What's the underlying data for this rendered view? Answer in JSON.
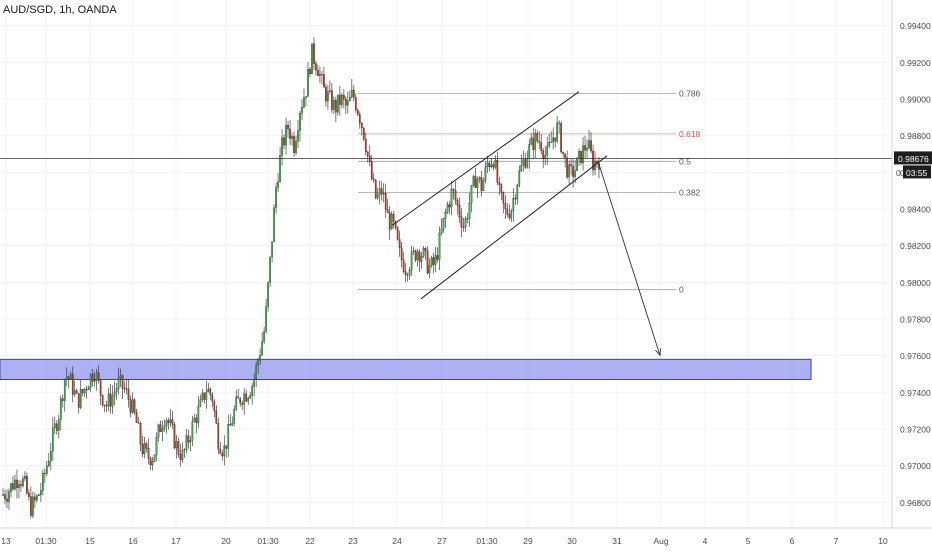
{
  "symbol_title": "AUD/SGD, 1h, OANDA",
  "colors": {
    "up": "#26a69a",
    "down": "#ef5350",
    "fill_up": "#39b54a",
    "fill_down": "#c0392b",
    "wick": "#222222",
    "support_zone": "#9fa3f0",
    "support_zone_border": "#3c3fb4",
    "price_line": "#333333",
    "fib_line": "#a0a0a0",
    "fib_highlight": "#f0a0a0",
    "grid": "#f0f3fa",
    "axis_text": "#4a4a4a"
  },
  "chart_data": {
    "type": "candlestick",
    "title": "AUD/SGD, 1h, OANDA",
    "ylim": [
      0.9666,
      0.9954
    ],
    "y_ticks": [
      "0.99400",
      "0.99200",
      "0.99000",
      "0.98800",
      "0.98600",
      "0.98400",
      "0.98200",
      "0.98000",
      "0.97800",
      "0.97600",
      "0.97400",
      "0.97200",
      "0.97000",
      "0.96800"
    ],
    "x_ticks": [
      "13",
      "01:30",
      "15",
      "16",
      "17",
      "20",
      "01:30",
      "22",
      "23",
      "24",
      "27",
      "01:30",
      "29",
      "30",
      "31",
      "Aug",
      "4",
      "5",
      "6",
      "7",
      "10"
    ],
    "current_price": "0.98676",
    "countdown": "03:55",
    "current_price_partial": "0",
    "candle_path": [
      0.9684,
      0.9685,
      0.969,
      0.9694,
      0.969,
      0.9677,
      0.9681,
      0.9689,
      0.9703,
      0.9718,
      0.973,
      0.975,
      0.9745,
      0.9735,
      0.974,
      0.9747,
      0.9752,
      0.974,
      0.9733,
      0.9738,
      0.9745,
      0.9742,
      0.9735,
      0.9725,
      0.971,
      0.9705,
      0.9705,
      0.972,
      0.9728,
      0.972,
      0.971,
      0.9705,
      0.9715,
      0.9725,
      0.9732,
      0.9742,
      0.9738,
      0.9715,
      0.9708,
      0.972,
      0.9732,
      0.9738,
      0.974,
      0.9745,
      0.976,
      0.9775,
      0.9815,
      0.9855,
      0.9875,
      0.9885,
      0.9875,
      0.9895,
      0.9905,
      0.9925,
      0.9918,
      0.9905,
      0.99,
      0.9895,
      0.99,
      0.9895,
      0.9903,
      0.9893,
      0.988,
      0.986,
      0.9845,
      0.985,
      0.9835,
      0.983,
      0.9815,
      0.9808,
      0.9812,
      0.9818,
      0.9815,
      0.9808,
      0.981,
      0.9825,
      0.984,
      0.985,
      0.984,
      0.983,
      0.9845,
      0.9858,
      0.9852,
      0.9865,
      0.9868,
      0.9848,
      0.9838,
      0.984,
      0.9855,
      0.9865,
      0.9872,
      0.9878,
      0.9877,
      0.9868,
      0.9878,
      0.9885,
      0.9868,
      0.9858,
      0.9862,
      0.987,
      0.9876,
      0.9865,
      0.9867
    ],
    "support_zone": {
      "from": 0.9747,
      "to": 0.9758
    },
    "fibonacci": {
      "levels": [
        {
          "label": "0.786",
          "price": 0.9903
        },
        {
          "label": "0.618",
          "price": 0.9881
        },
        {
          "label": "0.5",
          "price": 0.9866
        },
        {
          "label": "0.382",
          "price": 0.9849
        },
        {
          "label": "0",
          "price": 0.9796
        }
      ],
      "highlight_label": "0.618"
    },
    "channel": {
      "upper": {
        "from": {
          "x": 23.4,
          "price": 0.9831
        },
        "to": {
          "x": 30.2,
          "price": 0.9904
        }
      },
      "lower": {
        "from": {
          "x": 25.6,
          "price": 0.9791
        },
        "to": {
          "x": 30.8,
          "price": 0.9869
        }
      }
    },
    "projection_arrow": {
      "from": {
        "x": 30.6,
        "price": 0.9866
      },
      "to": {
        "x": 31.9,
        "price": 0.9758
      }
    }
  }
}
